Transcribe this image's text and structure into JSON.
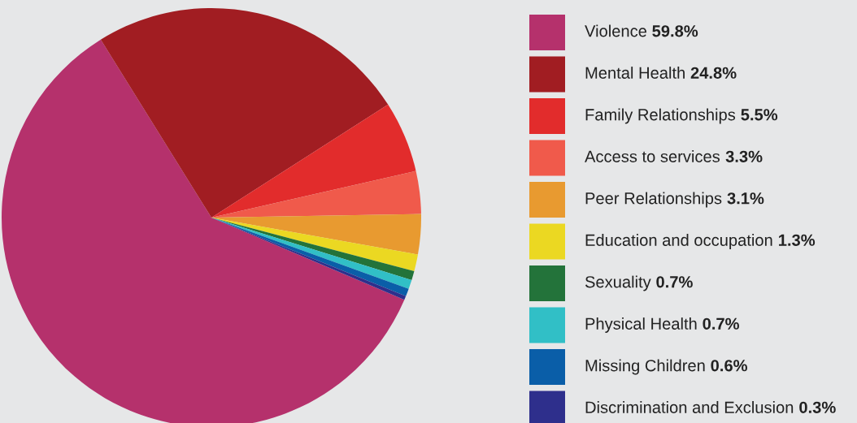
{
  "chart_data": {
    "type": "pie",
    "legend": "right",
    "categories": [
      "Violence",
      "Mental Health",
      "Family Relationships",
      "Access to services",
      "Peer Relationships",
      "Education and occupation",
      "Sexuality",
      "Physical Health",
      "Missing Children",
      "Discrimination and Exclusion"
    ],
    "values": [
      59.8,
      24.8,
      5.5,
      3.3,
      3.1,
      1.3,
      0.7,
      0.7,
      0.6,
      0.3
    ],
    "value_labels": [
      "59.8%",
      "24.8%",
      "5.5%",
      "3.3%",
      "3.1%",
      "1.3%",
      "0.7%",
      "0.7%",
      "0.6%",
      "0.3%"
    ],
    "colors": [
      "#b5316c",
      "#a11d22",
      "#e22c2c",
      "#f05a4b",
      "#e89a30",
      "#ebd822",
      "#23733a",
      "#31bfc6",
      "#0a5ea8",
      "#2e2f8c"
    ]
  }
}
